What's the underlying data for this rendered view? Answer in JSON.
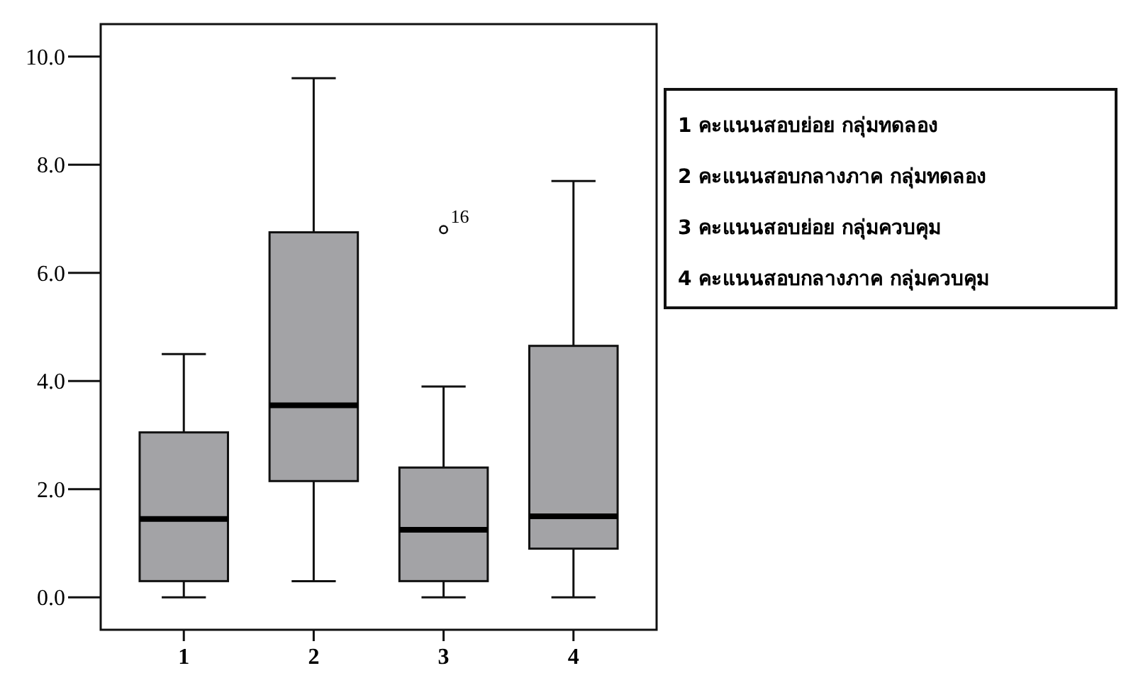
{
  "chart_data": {
    "type": "box",
    "categories": [
      "1",
      "2",
      "3",
      "4"
    ],
    "color": "#a3a3a6",
    "boxes": [
      {
        "low": 0,
        "q1": 0.3,
        "median": 1.45,
        "q3": 3.05,
        "high": 4.5
      },
      {
        "low": 0.3,
        "q1": 2.15,
        "median": 3.55,
        "q3": 6.75,
        "high": 9.6
      },
      {
        "low": 0,
        "q1": 0.3,
        "median": 1.25,
        "q3": 2.4,
        "high": 3.9,
        "outliers": [
          6.8
        ]
      },
      {
        "low": 0,
        "q1": 0.9,
        "median": 1.5,
        "q3": 4.65,
        "high": 7.7
      }
    ],
    "ylim": [
      -0.6,
      10.6
    ],
    "yticks": [
      {
        "value": 0,
        "label": "0.0"
      },
      {
        "value": 2,
        "label": "2.0"
      },
      {
        "value": 4,
        "label": "4.0"
      },
      {
        "value": 6,
        "label": "6.0"
      },
      {
        "value": 8,
        "label": "8.0"
      },
      {
        "value": 10,
        "label": "10.0"
      }
    ],
    "grid": false,
    "annotations": [
      "16",
      "1  คะแนนสอบย่อย  กลุ่มทดลอง",
      "2  คะแนนสอบกลางภาค  กลุ่มทดลอง",
      "3  คะแนนสอบย่อย  กลุ่มควบคุม",
      "4  คะแนนสอบกลางภาค  กลุ่มควบคุม"
    ]
  }
}
